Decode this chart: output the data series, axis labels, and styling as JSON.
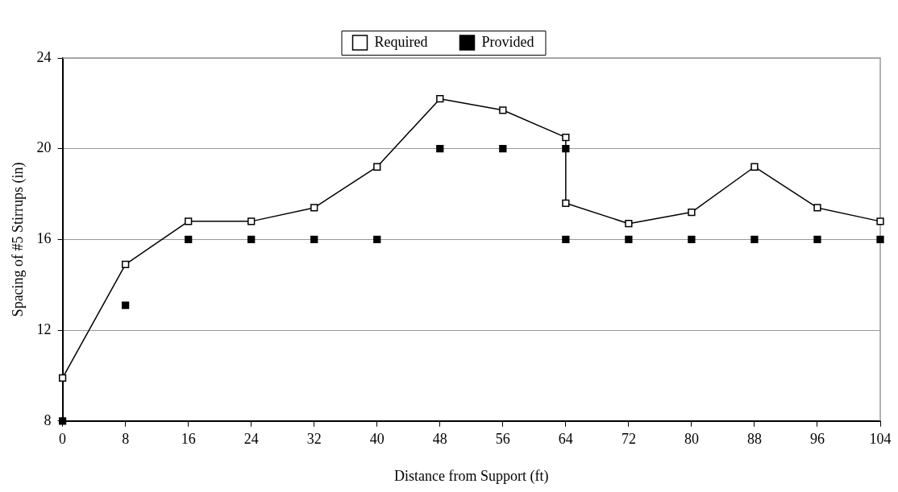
{
  "chart_data": {
    "type": "line",
    "xlabel": "Distance from Support (ft)",
    "ylabel": "Spacing of #5 Stirrups (in)",
    "xlim": [
      0,
      104
    ],
    "xticks": [
      0,
      8,
      16,
      24,
      32,
      40,
      48,
      56,
      64,
      72,
      80,
      88,
      96,
      104
    ],
    "ylim": [
      8,
      24
    ],
    "yticks": [
      8,
      12,
      16,
      20,
      24
    ],
    "grid": "y",
    "legend": "top",
    "marker": "square",
    "series": [
      {
        "name": "Required",
        "color": "#000000",
        "x": [
          0,
          8,
          16,
          24,
          32,
          40,
          48,
          56,
          64,
          64,
          72,
          80,
          88,
          96,
          104
        ],
        "values": [
          9.9,
          14.9,
          16.8,
          16.8,
          17.4,
          19.2,
          22.2,
          21.7,
          20.5,
          17.6,
          16.7,
          17.2,
          19.2,
          17.4,
          16.8
        ]
      },
      {
        "name": "Provided",
        "type": "scatter",
        "color": "#000000",
        "x": [
          0,
          8,
          16,
          24,
          32,
          40,
          48,
          56,
          64,
          64,
          72,
          80,
          88,
          96,
          104
        ],
        "values": [
          8,
          13.1,
          16,
          16,
          16,
          16,
          20,
          20,
          20,
          16,
          16,
          16,
          16,
          16,
          16
        ]
      }
    ]
  }
}
